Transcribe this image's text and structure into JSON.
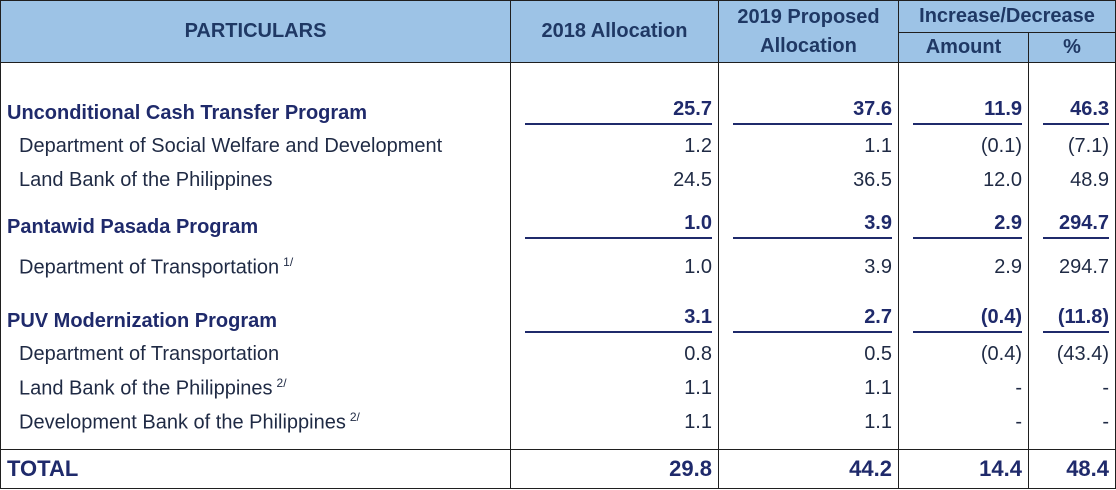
{
  "header": {
    "particulars": "PARTICULARS",
    "alloc_2018": "2018 Allocation",
    "alloc_2019_line1": "2019 Proposed",
    "alloc_2019_line2": "Allocation",
    "incdec": "Increase/Decrease",
    "amount": "Amount",
    "pct": "%"
  },
  "groups": [
    {
      "name": "Unconditional Cash Transfer Program",
      "v2018": "25.7",
      "v2019": "37.6",
      "amount": "11.9",
      "pct": "46.3",
      "items": [
        {
          "name": "Department of Social Welfare and Development",
          "note": "",
          "v2018": "1.2",
          "v2019": "1.1",
          "amount": "(0.1)",
          "pct": "(7.1)"
        },
        {
          "name": "Land Bank of the Philippines",
          "note": "",
          "v2018": "24.5",
          "v2019": "36.5",
          "amount": "12.0",
          "pct": "48.9"
        }
      ]
    },
    {
      "name": "Pantawid Pasada Program",
      "v2018": "1.0",
      "v2019": "3.9",
      "amount": "2.9",
      "pct": "294.7",
      "items": [
        {
          "name": "Department of Transportation",
          "note": "1/",
          "v2018": "1.0",
          "v2019": "3.9",
          "amount": "2.9",
          "pct": "294.7"
        }
      ]
    },
    {
      "name": "PUV Modernization Program",
      "v2018": "3.1",
      "v2019": "2.7",
      "amount": "(0.4)",
      "pct": "(11.8)",
      "items": [
        {
          "name": "Department of Transportation",
          "note": "",
          "v2018": "0.8",
          "v2019": "0.5",
          "amount": "(0.4)",
          "pct": "(43.4)"
        },
        {
          "name": "Land Bank of the Philippines",
          "note": "2/",
          "v2018": "1.1",
          "v2019": "1.1",
          "amount": "-",
          "pct": "-"
        },
        {
          "name": "Development Bank of the Philippines",
          "note": "2/",
          "v2018": "1.1",
          "v2019": "1.1",
          "amount": "-",
          "pct": "-"
        }
      ]
    }
  ],
  "total": {
    "label": "TOTAL",
    "v2018": "29.8",
    "v2019": "44.2",
    "amount": "14.4",
    "pct": "48.4"
  }
}
